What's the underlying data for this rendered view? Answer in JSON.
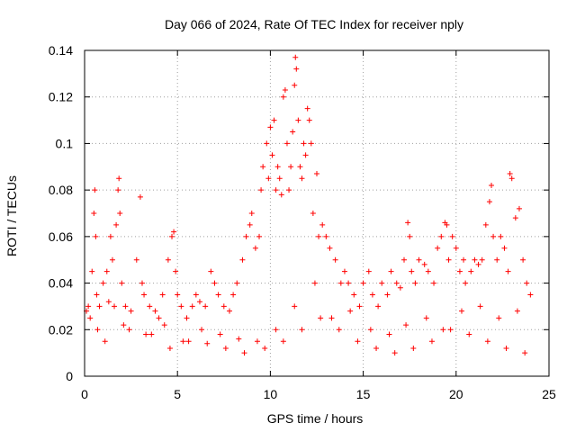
{
  "chart_data": {
    "type": "scatter",
    "title": "Day 066 of 2024, Rate Of TEC Index for receiver nply",
    "xlabel": "GPS time / hours",
    "ylabel": "ROTI / TECUs",
    "xlim": [
      0,
      25
    ],
    "ylim": [
      0,
      0.14
    ],
    "xticks": [
      0,
      5,
      10,
      15,
      20,
      25
    ],
    "xtick_labels": [
      "0",
      "5",
      "10",
      "15",
      "20",
      "25"
    ],
    "yticks": [
      0,
      0.02,
      0.04,
      0.06,
      0.08,
      0.1,
      0.12,
      0.14
    ],
    "ytick_labels": [
      "0",
      "0.02",
      "0.04",
      "0.06",
      "0.08",
      "0.1",
      "0.12",
      "0.14"
    ],
    "grid": true,
    "marker": "plus",
    "series": [
      {
        "name": "ROTI",
        "color": "#ff0000",
        "x": [
          0.1,
          0.3,
          0.4,
          0.5,
          0.55,
          0.6,
          0.65,
          0.8,
          1.0,
          1.2,
          1.4,
          1.5,
          1.6,
          1.7,
          1.8,
          1.85,
          1.9,
          2.0,
          2.2,
          2.5,
          2.8,
          3.0,
          3.1,
          3.2,
          3.5,
          3.8,
          4.0,
          4.2,
          4.5,
          4.7,
          4.8,
          4.9,
          5.0,
          5.2,
          5.5,
          5.8,
          6.0,
          6.2,
          6.5,
          6.8,
          7.0,
          7.2,
          7.5,
          7.8,
          8.0,
          8.2,
          8.5,
          8.7,
          8.9,
          9.0,
          9.2,
          9.4,
          9.5,
          9.6,
          9.8,
          9.9,
          10.0,
          10.1,
          10.2,
          10.3,
          10.4,
          10.5,
          10.6,
          10.7,
          10.8,
          10.9,
          11.0,
          11.1,
          11.2,
          11.3,
          11.35,
          11.4,
          11.5,
          11.6,
          11.7,
          11.8,
          11.9,
          12.0,
          12.1,
          12.2,
          12.3,
          12.5,
          12.6,
          12.8,
          13.0,
          13.2,
          13.5,
          13.8,
          14.0,
          14.2,
          14.5,
          14.8,
          15.0,
          15.3,
          15.5,
          15.8,
          16.0,
          16.3,
          16.5,
          16.8,
          17.0,
          17.2,
          17.4,
          17.5,
          17.6,
          17.8,
          18.0,
          18.3,
          18.5,
          18.8,
          19.0,
          19.2,
          19.4,
          19.5,
          19.6,
          19.8,
          20.0,
          20.2,
          20.4,
          20.5,
          20.8,
          21.0,
          21.2,
          21.4,
          21.6,
          21.8,
          21.9,
          22.0,
          22.2,
          22.4,
          22.6,
          22.8,
          22.9,
          23.0,
          23.2,
          23.4,
          23.6,
          23.8,
          24.0,
          0.2,
          1.3,
          2.4,
          3.3,
          4.3,
          5.3,
          6.3,
          7.3,
          8.3,
          9.3,
          10.3,
          11.3,
          12.4,
          13.3,
          14.3,
          15.4,
          16.4,
          17.3,
          18.4,
          19.3,
          20.3,
          21.3,
          22.3,
          23.3,
          0.7,
          1.1,
          2.1,
          3.6,
          4.6,
          5.6,
          6.6,
          7.6,
          8.6,
          9.7,
          10.7,
          11.7,
          12.7,
          13.7,
          14.7,
          15.7,
          16.7,
          17.7,
          18.7,
          19.7,
          20.7,
          21.7,
          22.7,
          23.7
        ],
        "y": [
          0.028,
          0.025,
          0.045,
          0.07,
          0.08,
          0.06,
          0.035,
          0.03,
          0.04,
          0.045,
          0.06,
          0.05,
          0.03,
          0.065,
          0.08,
          0.085,
          0.07,
          0.04,
          0.03,
          0.028,
          0.05,
          0.077,
          0.04,
          0.035,
          0.03,
          0.028,
          0.025,
          0.035,
          0.05,
          0.06,
          0.062,
          0.045,
          0.035,
          0.03,
          0.025,
          0.03,
          0.035,
          0.032,
          0.03,
          0.045,
          0.04,
          0.035,
          0.03,
          0.028,
          0.035,
          0.04,
          0.05,
          0.06,
          0.065,
          0.07,
          0.055,
          0.06,
          0.08,
          0.09,
          0.1,
          0.085,
          0.107,
          0.095,
          0.11,
          0.08,
          0.09,
          0.085,
          0.078,
          0.12,
          0.123,
          0.1,
          0.08,
          0.09,
          0.105,
          0.125,
          0.137,
          0.132,
          0.11,
          0.09,
          0.085,
          0.1,
          0.095,
          0.115,
          0.11,
          0.1,
          0.07,
          0.087,
          0.06,
          0.065,
          0.06,
          0.055,
          0.05,
          0.04,
          0.045,
          0.04,
          0.035,
          0.03,
          0.04,
          0.045,
          0.035,
          0.03,
          0.04,
          0.035,
          0.045,
          0.04,
          0.038,
          0.05,
          0.066,
          0.06,
          0.045,
          0.04,
          0.05,
          0.048,
          0.045,
          0.04,
          0.055,
          0.06,
          0.066,
          0.065,
          0.05,
          0.06,
          0.055,
          0.045,
          0.05,
          0.04,
          0.045,
          0.05,
          0.048,
          0.05,
          0.065,
          0.075,
          0.082,
          0.06,
          0.05,
          0.06,
          0.055,
          0.045,
          0.087,
          0.085,
          0.068,
          0.072,
          0.05,
          0.04,
          0.035,
          0.03,
          0.032,
          0.02,
          0.018,
          0.022,
          0.015,
          0.02,
          0.018,
          0.016,
          0.015,
          0.02,
          0.03,
          0.04,
          0.025,
          0.028,
          0.02,
          0.018,
          0.022,
          0.025,
          0.02,
          0.028,
          0.03,
          0.025,
          0.028,
          0.02,
          0.015,
          0.022,
          0.018,
          0.012,
          0.015,
          0.014,
          0.012,
          0.01,
          0.012,
          0.015,
          0.02,
          0.025,
          0.02,
          0.015,
          0.012,
          0.01,
          0.012,
          0.015,
          0.02,
          0.018,
          0.015,
          0.012,
          0.01
        ]
      }
    ]
  }
}
